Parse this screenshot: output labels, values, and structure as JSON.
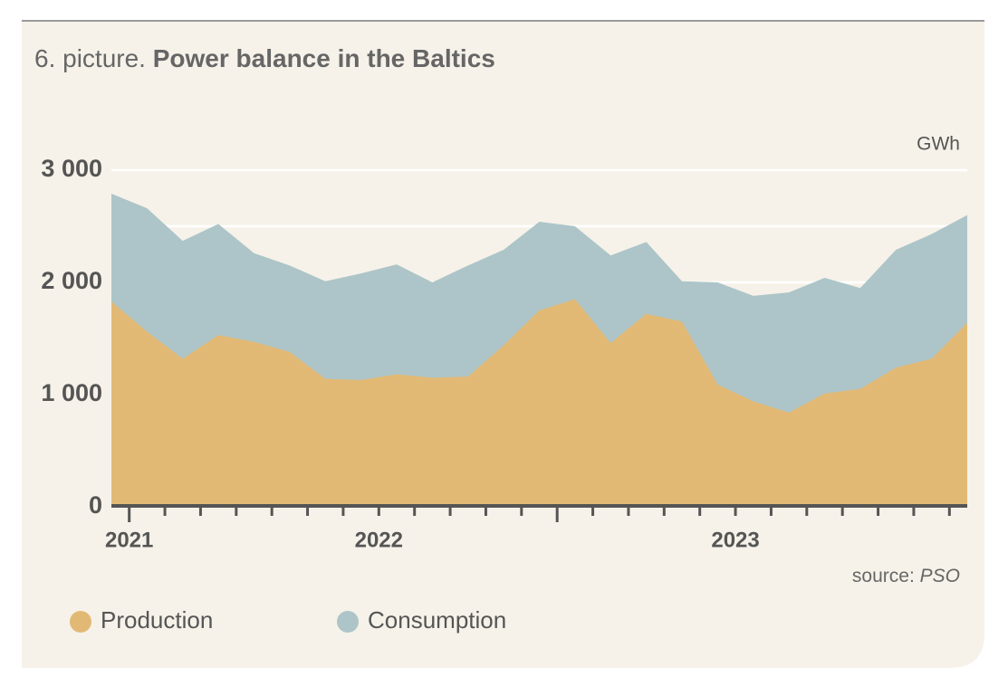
{
  "chart_data": {
    "type": "area",
    "title_prefix": "6. picture.",
    "title": "Power balance in the Baltics",
    "unit": "GWh",
    "source_label": "source:",
    "source": "PSO",
    "categories": [
      "2021",
      null,
      null,
      null,
      null,
      null,
      null,
      "2022",
      null,
      null,
      null,
      null,
      null,
      null,
      null,
      null,
      null,
      "2023",
      null,
      null,
      null,
      null,
      null,
      null,
      null
    ],
    "series": [
      {
        "name": "Consumption",
        "color": "#adc5c8",
        "values": [
          2790,
          2660,
          2370,
          2520,
          2260,
          2150,
          2010,
          2080,
          2160,
          2000,
          2150,
          2290,
          2540,
          2500,
          2240,
          2360,
          2010,
          2000,
          1880,
          1910,
          2040,
          1950,
          2290,
          2430,
          2600
        ]
      },
      {
        "name": "Production",
        "color": "#e2b974",
        "values": [
          1830,
          1560,
          1320,
          1530,
          1470,
          1380,
          1140,
          1130,
          1180,
          1150,
          1160,
          1440,
          1750,
          1850,
          1460,
          1720,
          1650,
          1090,
          940,
          840,
          1010,
          1050,
          1240,
          1320,
          1640
        ]
      }
    ],
    "legend_order": [
      1,
      0
    ],
    "ylim": [
      0,
      3000
    ],
    "yticks": [
      0,
      {
        "value": 1000,
        "label": "1 000"
      },
      {
        "value": 2000,
        "label": "2 000"
      },
      {
        "value": 3000,
        "label": "3 000"
      }
    ],
    "yminorticks": [
      500,
      1500,
      2500
    ],
    "grid": true
  }
}
